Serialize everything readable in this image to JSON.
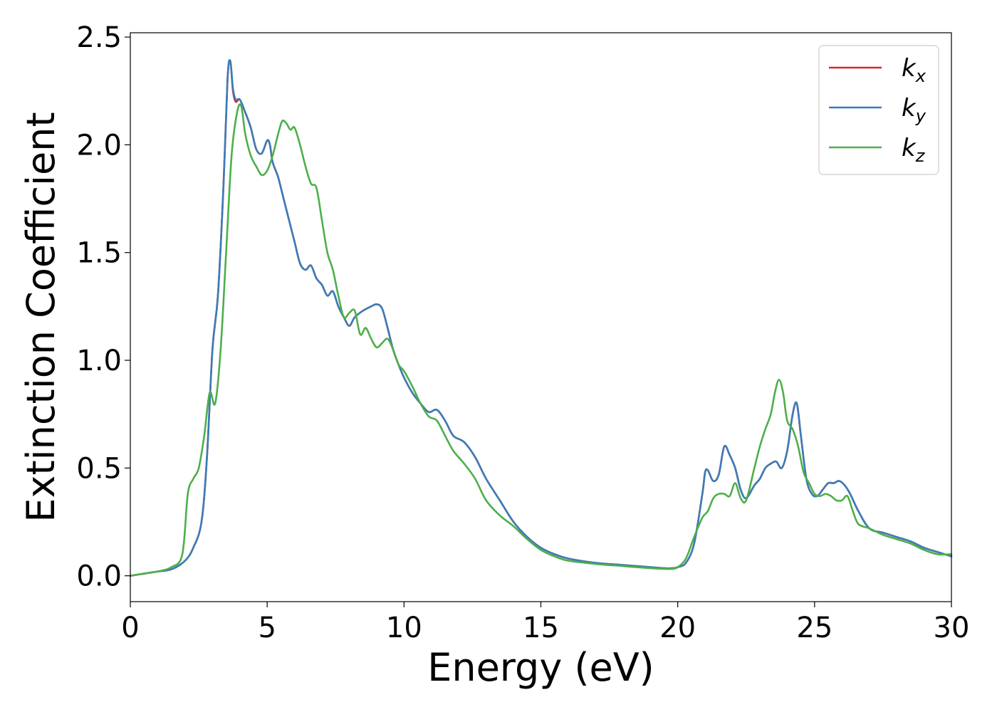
{
  "chart_data": {
    "type": "line",
    "xlabel": "Energy (eV)",
    "ylabel": "Extinction Coefficient",
    "xlim": [
      0,
      30
    ],
    "ylim": [
      -0.12,
      2.52
    ],
    "xticks": [
      0,
      5,
      10,
      15,
      20,
      25,
      30
    ],
    "yticks": [
      0.0,
      0.5,
      1.0,
      1.5,
      2.0,
      2.5
    ],
    "xtick_labels": [
      "0",
      "5",
      "10",
      "15",
      "20",
      "25",
      "30"
    ],
    "ytick_labels": [
      "0.0",
      "0.5",
      "1.0",
      "1.5",
      "2.0",
      "2.5"
    ],
    "grid": false,
    "legend_position": "top-right",
    "series": [
      {
        "name": "k_x",
        "label_base": "k",
        "label_sub": "x",
        "color": "#d62728",
        "x": [
          0,
          0.5,
          1.0,
          1.5,
          2.0,
          2.3,
          2.6,
          2.8,
          3.0,
          3.2,
          3.4,
          3.55,
          3.65,
          3.75,
          3.85,
          4.0,
          4.2,
          4.4,
          4.6,
          4.8,
          5.0,
          5.1,
          5.2,
          5.4,
          5.6,
          5.8,
          6.0,
          6.2,
          6.4,
          6.6,
          6.8,
          7.0,
          7.2,
          7.4,
          7.6,
          7.8,
          8.0,
          8.2,
          8.5,
          8.8,
          9.0,
          9.2,
          9.4,
          9.6,
          9.8,
          10.0,
          10.3,
          10.6,
          10.9,
          11.2,
          11.5,
          11.8,
          12.2,
          12.6,
          13.0,
          13.5,
          14.0,
          14.5,
          15.0,
          15.5,
          16.0,
          17.0,
          18.0,
          19.0,
          19.5,
          19.8,
          20.0,
          20.3,
          20.6,
          20.9,
          21.0,
          21.1,
          21.3,
          21.5,
          21.7,
          21.9,
          22.1,
          22.3,
          22.5,
          22.8,
          23.0,
          23.2,
          23.4,
          23.6,
          23.8,
          24.0,
          24.2,
          24.35,
          24.5,
          24.7,
          24.9,
          25.1,
          25.3,
          25.5,
          25.7,
          25.9,
          26.1,
          26.3,
          26.6,
          27.0,
          27.5,
          28.0,
          28.5,
          29.0,
          29.5,
          30.0
        ],
        "values": [
          0.0,
          0.01,
          0.02,
          0.03,
          0.07,
          0.13,
          0.25,
          0.55,
          1.05,
          1.3,
          1.8,
          2.3,
          2.39,
          2.25,
          2.2,
          2.21,
          2.15,
          2.08,
          1.98,
          1.96,
          2.02,
          2.0,
          1.92,
          1.85,
          1.75,
          1.65,
          1.55,
          1.45,
          1.42,
          1.44,
          1.38,
          1.35,
          1.3,
          1.32,
          1.25,
          1.2,
          1.16,
          1.2,
          1.23,
          1.25,
          1.26,
          1.24,
          1.15,
          1.05,
          0.98,
          0.92,
          0.85,
          0.8,
          0.76,
          0.77,
          0.72,
          0.65,
          0.62,
          0.55,
          0.45,
          0.35,
          0.25,
          0.18,
          0.13,
          0.1,
          0.08,
          0.06,
          0.05,
          0.04,
          0.035,
          0.035,
          0.04,
          0.06,
          0.15,
          0.38,
          0.48,
          0.49,
          0.44,
          0.47,
          0.6,
          0.56,
          0.5,
          0.4,
          0.36,
          0.42,
          0.45,
          0.5,
          0.52,
          0.53,
          0.5,
          0.58,
          0.75,
          0.8,
          0.65,
          0.45,
          0.38,
          0.37,
          0.4,
          0.43,
          0.43,
          0.44,
          0.42,
          0.38,
          0.3,
          0.22,
          0.2,
          0.18,
          0.16,
          0.13,
          0.11,
          0.09
        ]
      },
      {
        "name": "k_y",
        "label_base": "k",
        "label_sub": "y",
        "color": "#3a7db8",
        "x": [
          0,
          0.5,
          1.0,
          1.5,
          2.0,
          2.3,
          2.6,
          2.8,
          3.0,
          3.2,
          3.4,
          3.55,
          3.65,
          3.75,
          3.85,
          4.0,
          4.2,
          4.4,
          4.6,
          4.8,
          5.0,
          5.1,
          5.2,
          5.4,
          5.6,
          5.8,
          6.0,
          6.2,
          6.4,
          6.6,
          6.8,
          7.0,
          7.2,
          7.4,
          7.6,
          7.8,
          8.0,
          8.2,
          8.5,
          8.8,
          9.0,
          9.2,
          9.4,
          9.6,
          9.8,
          10.0,
          10.3,
          10.6,
          10.9,
          11.2,
          11.5,
          11.8,
          12.2,
          12.6,
          13.0,
          13.5,
          14.0,
          14.5,
          15.0,
          15.5,
          16.0,
          17.0,
          18.0,
          19.0,
          19.5,
          19.8,
          20.0,
          20.3,
          20.6,
          20.9,
          21.0,
          21.1,
          21.3,
          21.5,
          21.7,
          21.9,
          22.1,
          22.3,
          22.5,
          22.8,
          23.0,
          23.2,
          23.4,
          23.6,
          23.8,
          24.0,
          24.2,
          24.35,
          24.5,
          24.7,
          24.9,
          25.1,
          25.3,
          25.5,
          25.7,
          25.9,
          26.1,
          26.3,
          26.6,
          27.0,
          27.5,
          28.0,
          28.5,
          29.0,
          29.5,
          30.0
        ],
        "values": [
          0.0,
          0.01,
          0.02,
          0.03,
          0.07,
          0.13,
          0.25,
          0.55,
          1.05,
          1.3,
          1.8,
          2.3,
          2.39,
          2.26,
          2.21,
          2.21,
          2.15,
          2.08,
          1.98,
          1.96,
          2.02,
          2.0,
          1.92,
          1.85,
          1.75,
          1.65,
          1.55,
          1.45,
          1.42,
          1.44,
          1.38,
          1.35,
          1.3,
          1.32,
          1.25,
          1.2,
          1.16,
          1.2,
          1.23,
          1.25,
          1.26,
          1.24,
          1.15,
          1.05,
          0.98,
          0.92,
          0.85,
          0.8,
          0.76,
          0.77,
          0.72,
          0.65,
          0.62,
          0.55,
          0.45,
          0.35,
          0.25,
          0.18,
          0.13,
          0.1,
          0.08,
          0.06,
          0.05,
          0.04,
          0.035,
          0.035,
          0.04,
          0.06,
          0.15,
          0.38,
          0.48,
          0.49,
          0.44,
          0.47,
          0.6,
          0.56,
          0.5,
          0.4,
          0.36,
          0.42,
          0.45,
          0.5,
          0.52,
          0.53,
          0.5,
          0.58,
          0.75,
          0.8,
          0.65,
          0.45,
          0.38,
          0.37,
          0.4,
          0.43,
          0.43,
          0.44,
          0.42,
          0.38,
          0.3,
          0.22,
          0.2,
          0.18,
          0.16,
          0.13,
          0.11,
          0.09
        ]
      },
      {
        "name": "k_z",
        "label_base": "k",
        "label_sub": "z",
        "color": "#4daf4a",
        "x": [
          0,
          0.5,
          1.0,
          1.5,
          1.9,
          2.1,
          2.3,
          2.5,
          2.7,
          2.9,
          3.1,
          3.3,
          3.5,
          3.7,
          3.9,
          4.05,
          4.2,
          4.4,
          4.6,
          4.8,
          5.0,
          5.2,
          5.4,
          5.55,
          5.7,
          5.85,
          6.0,
          6.2,
          6.4,
          6.6,
          6.8,
          7.0,
          7.2,
          7.4,
          7.6,
          7.8,
          8.0,
          8.2,
          8.4,
          8.6,
          8.8,
          9.0,
          9.2,
          9.4,
          9.6,
          9.8,
          10.0,
          10.3,
          10.6,
          10.9,
          11.2,
          11.5,
          11.8,
          12.2,
          12.6,
          13.0,
          13.5,
          14.0,
          14.5,
          15.0,
          15.5,
          16.0,
          17.0,
          18.0,
          19.0,
          19.5,
          19.8,
          20.0,
          20.3,
          20.6,
          20.9,
          21.1,
          21.3,
          21.5,
          21.7,
          21.9,
          22.1,
          22.3,
          22.5,
          22.8,
          23.0,
          23.2,
          23.4,
          23.55,
          23.7,
          23.85,
          24.0,
          24.2,
          24.4,
          24.6,
          24.8,
          25.0,
          25.2,
          25.4,
          25.6,
          25.8,
          26.0,
          26.2,
          26.4,
          26.6,
          27.0,
          27.5,
          28.0,
          28.5,
          29.0,
          29.5,
          30.0
        ],
        "values": [
          0.0,
          0.01,
          0.02,
          0.04,
          0.1,
          0.38,
          0.45,
          0.5,
          0.65,
          0.85,
          0.8,
          1.05,
          1.5,
          1.95,
          2.15,
          2.18,
          2.05,
          1.95,
          1.9,
          1.86,
          1.88,
          1.95,
          2.05,
          2.11,
          2.1,
          2.07,
          2.08,
          2.0,
          1.9,
          1.82,
          1.8,
          1.65,
          1.5,
          1.42,
          1.3,
          1.2,
          1.22,
          1.23,
          1.12,
          1.15,
          1.1,
          1.06,
          1.08,
          1.1,
          1.05,
          0.98,
          0.95,
          0.88,
          0.8,
          0.74,
          0.72,
          0.65,
          0.58,
          0.52,
          0.45,
          0.35,
          0.28,
          0.23,
          0.17,
          0.12,
          0.09,
          0.07,
          0.055,
          0.045,
          0.035,
          0.032,
          0.032,
          0.04,
          0.08,
          0.18,
          0.27,
          0.3,
          0.36,
          0.38,
          0.38,
          0.37,
          0.43,
          0.36,
          0.35,
          0.5,
          0.6,
          0.68,
          0.75,
          0.85,
          0.91,
          0.85,
          0.72,
          0.68,
          0.6,
          0.48,
          0.43,
          0.38,
          0.37,
          0.38,
          0.37,
          0.35,
          0.35,
          0.37,
          0.3,
          0.24,
          0.22,
          0.19,
          0.17,
          0.15,
          0.12,
          0.1,
          0.1
        ]
      }
    ]
  }
}
